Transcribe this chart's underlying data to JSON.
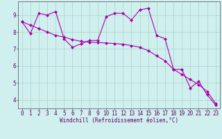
{
  "title": "",
  "xlabel": "Windchill (Refroidissement éolien,°C)",
  "ylabel": "",
  "bg_color": "#cff0ee",
  "grid_color": "#b0d8cc",
  "line_color": "#aa00aa",
  "axis_color": "#666666",
  "tick_label_color": "#660066",
  "xlabel_color": "#660066",
  "xlim": [
    -0.5,
    23.5
  ],
  "ylim": [
    3.5,
    9.8
  ],
  "yticks": [
    4,
    5,
    6,
    7,
    8,
    9
  ],
  "xticks": [
    0,
    1,
    2,
    3,
    4,
    5,
    6,
    7,
    8,
    9,
    10,
    11,
    12,
    13,
    14,
    15,
    16,
    17,
    18,
    19,
    20,
    21,
    22,
    23
  ],
  "data_line": [
    8.6,
    7.9,
    9.1,
    9.0,
    9.2,
    7.6,
    7.1,
    7.3,
    7.5,
    7.5,
    8.9,
    9.1,
    9.1,
    8.7,
    9.3,
    9.4,
    7.8,
    7.6,
    5.8,
    5.8,
    4.7,
    5.1,
    4.3,
    3.7
  ],
  "trend_line": [
    8.6,
    8.4,
    8.2,
    8.0,
    7.8,
    7.7,
    7.55,
    7.45,
    7.4,
    7.38,
    7.35,
    7.32,
    7.28,
    7.2,
    7.1,
    6.9,
    6.6,
    6.3,
    5.8,
    5.5,
    5.2,
    4.9,
    4.5,
    3.8
  ],
  "font_size": 5.5,
  "marker": "D",
  "marker_size": 2,
  "linewidth": 0.8
}
